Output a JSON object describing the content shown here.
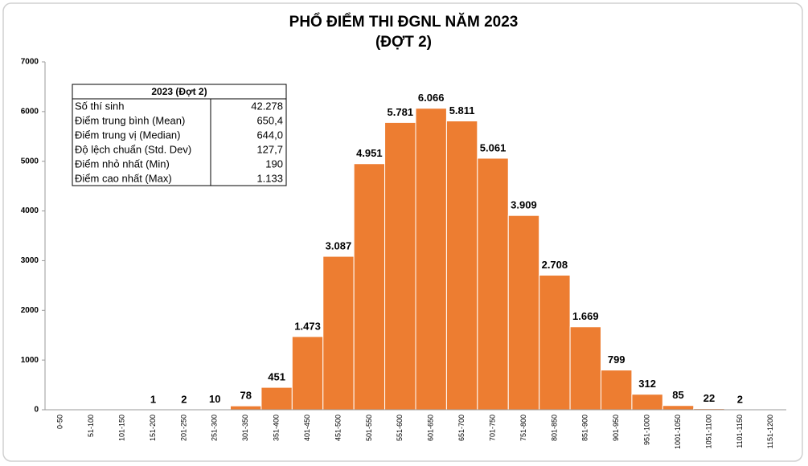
{
  "chart_data": {
    "type": "bar",
    "title": "PHỔ ĐIỂM THI ĐGNL NĂM 2023",
    "subtitle": "(ĐỢT 2)",
    "categories": [
      "0-50",
      "51-100",
      "101-150",
      "151-200",
      "201-250",
      "251-300",
      "301-350",
      "351-400",
      "401-450",
      "451-500",
      "501-550",
      "551-600",
      "601-650",
      "651-700",
      "701-750",
      "751-800",
      "801-850",
      "851-900",
      "901-950",
      "951-1000",
      "1001-1050",
      "1051-1100",
      "1101-1150",
      "1151-1200"
    ],
    "values": [
      0,
      0,
      0,
      1,
      2,
      10,
      78,
      451,
      1473,
      3087,
      4951,
      5781,
      6066,
      5811,
      5061,
      3909,
      2708,
      1669,
      799,
      312,
      85,
      22,
      2,
      0
    ],
    "value_labels": [
      null,
      null,
      null,
      "1",
      "2",
      "10",
      "78",
      "451",
      "1.473",
      "3.087",
      "4.951",
      "5.781",
      "6.066",
      "5.811",
      "5.061",
      "3.909",
      "2.708",
      "1.669",
      "799",
      "312",
      "85",
      "22",
      "2",
      null
    ],
    "color": "#ed7d31",
    "ylim": [
      0,
      7000
    ],
    "yticks": [
      0,
      1000,
      2000,
      3000,
      4000,
      5000,
      6000,
      7000
    ],
    "grid": false,
    "table": {
      "header": "2023 (Đợt 2)",
      "rows": [
        [
          "Số thí sinh",
          "42.278"
        ],
        [
          "Điểm trung bình (Mean)",
          "650,4"
        ],
        [
          "Điểm trung vị (Median)",
          "644,0"
        ],
        [
          "Độ lệch chuẩn (Std. Dev)",
          "127,7"
        ],
        [
          "Điểm nhỏ nhất (Min)",
          "190"
        ],
        [
          "Điểm cao nhất (Max)",
          "1.133"
        ]
      ]
    }
  }
}
